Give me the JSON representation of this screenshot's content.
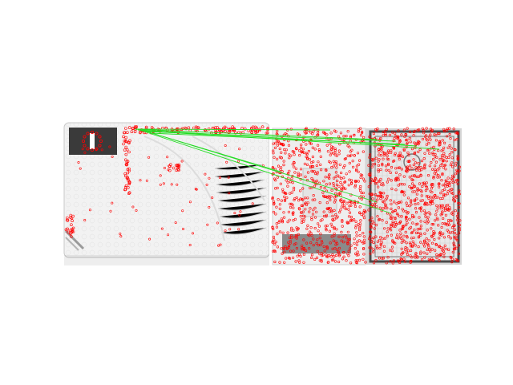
{
  "figure": {
    "type": "feature-matching-visualization",
    "description_visible": "",
    "left_image": {
      "label": "id-card-scan",
      "tint": "grayscale",
      "emblem": "eu-flag-emblem",
      "country_letter": "I"
    },
    "right_image": {
      "label": "booklet-scan",
      "tint": "grayscale"
    },
    "colors": {
      "keypoint": "#ff0000",
      "match_line": "#22dd22",
      "card_face": "#efefef",
      "card_border": "#bdbdbd"
    },
    "keypoints": {
      "left_count": 260,
      "right_count": 1600
    },
    "matches": 9
  }
}
